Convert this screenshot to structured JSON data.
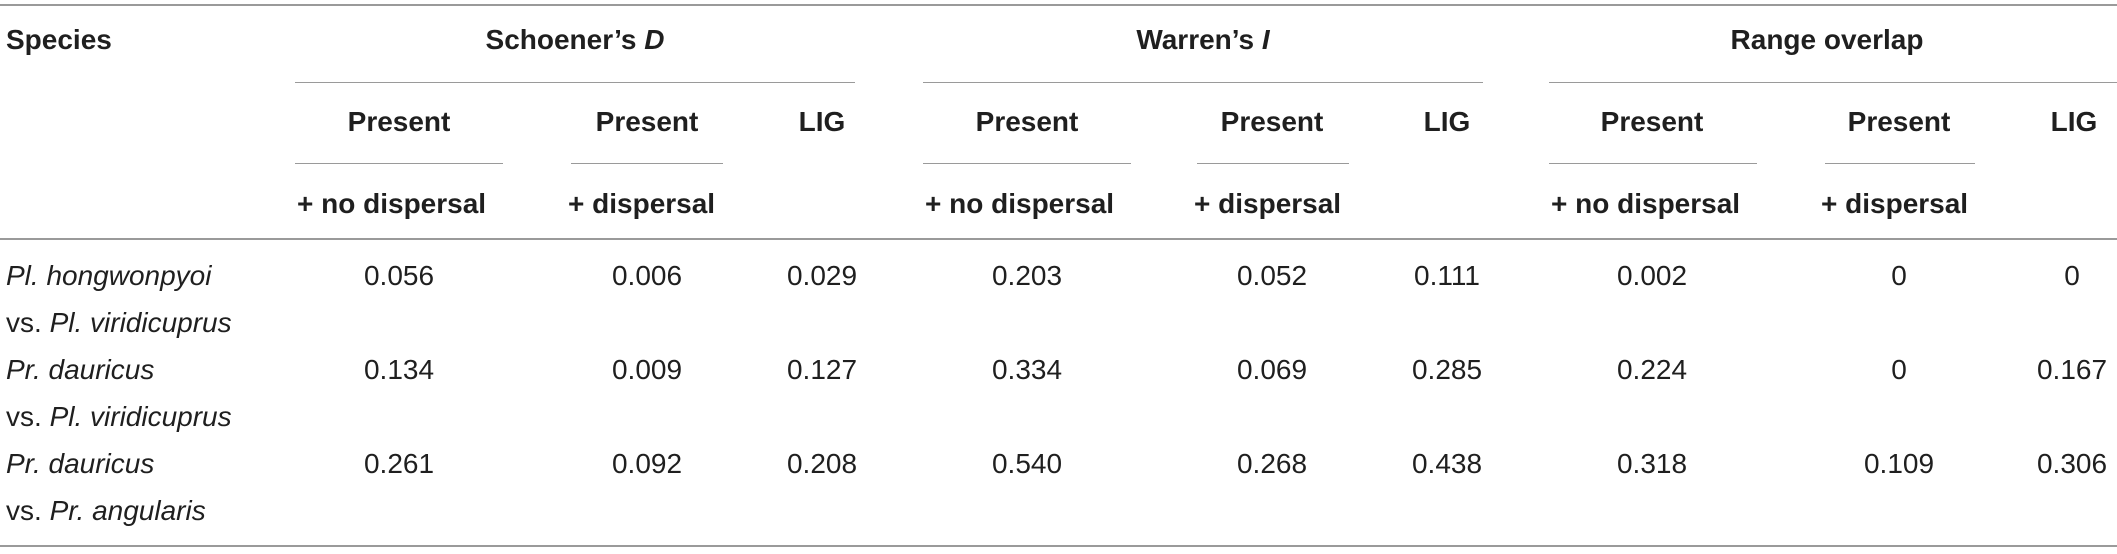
{
  "table": {
    "headers": {
      "species": "Species",
      "groups": [
        {
          "label": "Schoener’s ",
          "label_italic": "D"
        },
        {
          "label": "Warren’s ",
          "label_italic": "I"
        },
        {
          "label": "Range overlap",
          "label_italic": ""
        }
      ],
      "sub": {
        "present": "Present",
        "lig": "LIG",
        "no_dispersal": "+  no dispersal",
        "dispersal": "+ dispersal"
      }
    },
    "rows": [
      {
        "species_line1": "Pl. hongwonpyoi",
        "species_line2_prefix": "vs. ",
        "species_line2": "Pl. viridicuprus",
        "values": [
          "0.056",
          "0.006",
          "0.029",
          "0.203",
          "0.052",
          "0.111",
          "0.002",
          "0",
          "0"
        ]
      },
      {
        "species_line1": "Pr. dauricus",
        "species_line2_prefix": "vs. ",
        "species_line2": "Pl. viridicuprus",
        "values": [
          "0.134",
          "0.009",
          "0.127",
          "0.334",
          "0.069",
          "0.285",
          "0.224",
          "0",
          "0.167"
        ]
      },
      {
        "species_line1": "Pr. dauricus",
        "species_line2_prefix": "vs. ",
        "species_line2": "Pr. angularis",
        "values": [
          "0.261",
          "0.092",
          "0.208",
          "0.540",
          "0.268",
          "0.438",
          "0.318",
          "0.109",
          "0.306"
        ]
      }
    ]
  }
}
